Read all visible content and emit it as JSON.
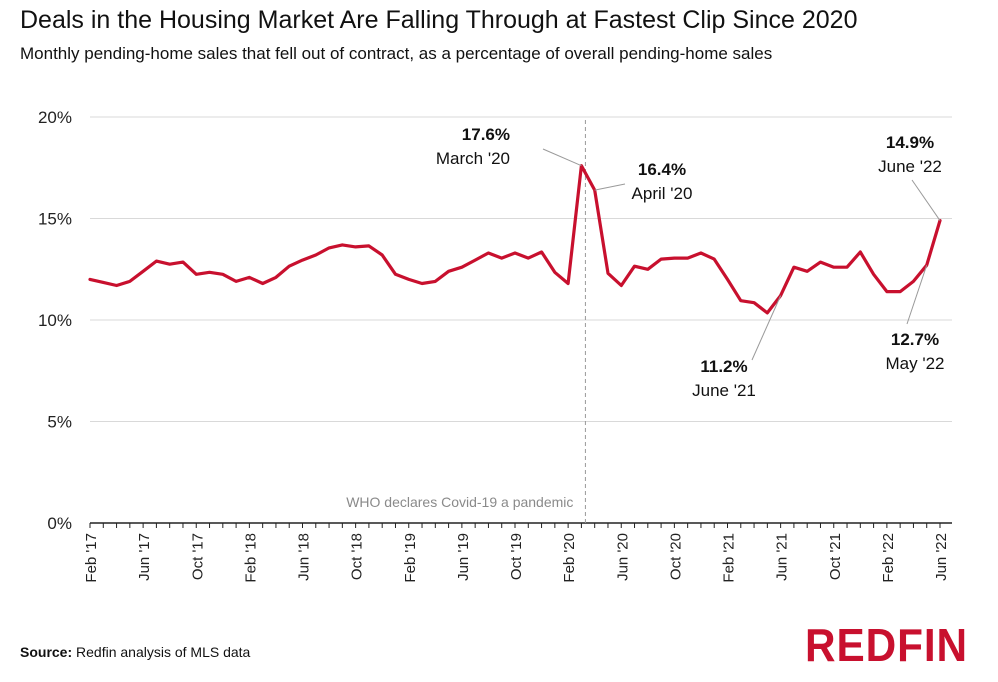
{
  "title": "Deals in the Housing Market Are Falling Through at Fastest Clip Since 2020",
  "subtitle": "Monthly pending-home sales that fell out of contract, as a percentage of overall pending-home sales",
  "source_label": "Source:",
  "source_text": " Redfin analysis of MLS data",
  "logo_text": "REDFIN",
  "colors": {
    "line": "#c8102e",
    "grid": "#d9d9d9",
    "axis": "#222222",
    "event_line": "#999999"
  },
  "chart_data": {
    "type": "line",
    "title": "Deals in the Housing Market Are Falling Through at Fastest Clip Since 2020",
    "xlabel": "",
    "ylabel": "",
    "ylim": [
      0,
      20
    ],
    "yticks": [
      "0%",
      "5%",
      "10%",
      "15%",
      "20%"
    ],
    "grid": true,
    "xtick_labels": [
      "Feb '17",
      "Jun '17",
      "Oct '17",
      "Feb '18",
      "Jun '18",
      "Oct '18",
      "Feb '19",
      "Jun '19",
      "Oct '19",
      "Feb '20",
      "Jun '20",
      "Oct '20",
      "Feb '21",
      "Jun '21",
      "Oct '21",
      "Feb '22",
      "Jun '22"
    ],
    "x": [
      "Feb '17",
      "Mar '17",
      "Apr '17",
      "May '17",
      "Jun '17",
      "Jul '17",
      "Aug '17",
      "Sep '17",
      "Oct '17",
      "Nov '17",
      "Dec '17",
      "Jan '18",
      "Feb '18",
      "Mar '18",
      "Apr '18",
      "May '18",
      "Jun '18",
      "Jul '18",
      "Aug '18",
      "Sep '18",
      "Oct '18",
      "Nov '18",
      "Dec '18",
      "Jan '19",
      "Feb '19",
      "Mar '19",
      "Apr '19",
      "May '19",
      "Jun '19",
      "Jul '19",
      "Aug '19",
      "Sep '19",
      "Oct '19",
      "Nov '19",
      "Dec '19",
      "Jan '20",
      "Feb '20",
      "Mar '20",
      "Apr '20",
      "May '20",
      "Jun '20",
      "Jul '20",
      "Aug '20",
      "Sep '20",
      "Oct '20",
      "Nov '20",
      "Dec '20",
      "Jan '21",
      "Feb '21",
      "Mar '21",
      "Apr '21",
      "May '21",
      "Jun '21",
      "Jul '21",
      "Aug '21",
      "Sep '21",
      "Oct '21",
      "Nov '21",
      "Dec '21",
      "Jan '22",
      "Feb '22",
      "Mar '22",
      "Apr '22",
      "May '22",
      "Jun '22"
    ],
    "series": [
      {
        "values": [
          12.0,
          11.85,
          11.7,
          11.9,
          12.4,
          12.9,
          12.75,
          12.85,
          12.25,
          12.35,
          12.25,
          11.9,
          12.1,
          11.8,
          12.1,
          12.65,
          12.95,
          13.2,
          13.55,
          13.7,
          13.6,
          13.65,
          13.2,
          12.25,
          12.0,
          11.8,
          11.9,
          12.4,
          12.6,
          12.95,
          13.3,
          13.05,
          13.3,
          13.05,
          13.35,
          12.35,
          11.8,
          17.6,
          16.4,
          12.3,
          11.7,
          12.65,
          12.5,
          13.0,
          13.05,
          13.05,
          13.3,
          13.0,
          12.0,
          10.95,
          10.85,
          10.35,
          11.2,
          12.6,
          12.4,
          12.85,
          12.6,
          12.6,
          13.35,
          12.25,
          11.4,
          11.4,
          11.9,
          12.7,
          14.9
        ]
      }
    ],
    "event": {
      "x": "Mar '20",
      "label": "WHO declares Covid-19 a pandemic"
    },
    "annotations": [
      {
        "x": "Mar '20",
        "value_label": "17.6%",
        "date_label": "March '20"
      },
      {
        "x": "Apr '20",
        "value_label": "16.4%",
        "date_label": "April '20"
      },
      {
        "x": "Jun '21",
        "value_label": "11.2%",
        "date_label": "June '21"
      },
      {
        "x": "May '22",
        "value_label": "12.7%",
        "date_label": "May '22"
      },
      {
        "x": "Jun '22",
        "value_label": "14.9%",
        "date_label": "June '22"
      }
    ]
  }
}
